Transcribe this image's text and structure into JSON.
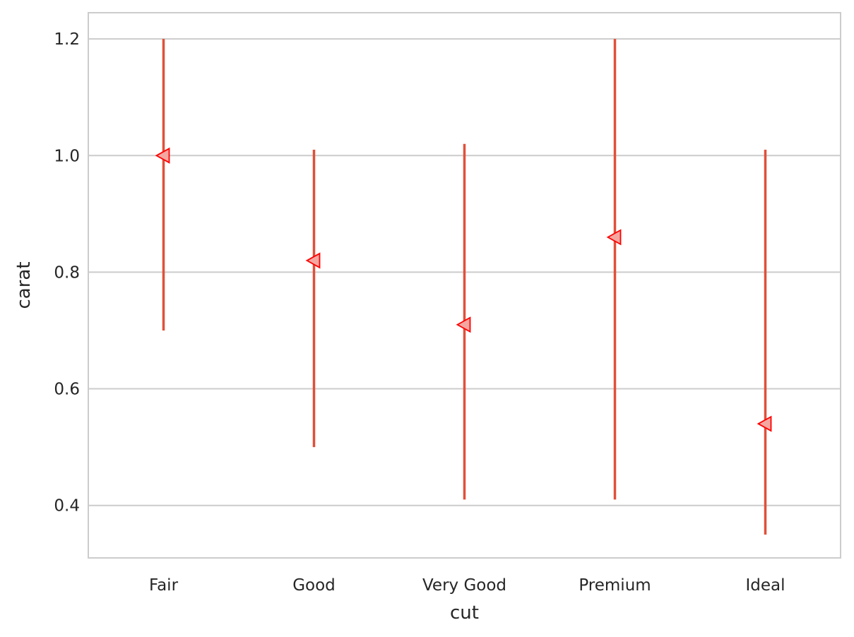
{
  "chart_data": {
    "type": "scatter",
    "xlabel": "cut",
    "ylabel": "carat",
    "categories": [
      "Fair",
      "Good",
      "Very Good",
      "Premium",
      "Ideal"
    ],
    "series": [
      {
        "estimates": [
          1.0,
          0.82,
          0.71,
          0.86,
          0.54
        ],
        "error_low": [
          0.7,
          0.5,
          0.41,
          0.41,
          0.35
        ],
        "error_high": [
          1.2,
          1.01,
          1.02,
          1.2,
          1.01
        ]
      }
    ],
    "ylim": [
      0.31,
      1.245
    ],
    "yticks": [
      0.4,
      0.6,
      0.8,
      1.0,
      1.2
    ],
    "ytick_labels": [
      "0.4",
      "0.6",
      "0.8",
      "1.0",
      "1.2"
    ],
    "grid": true,
    "marker": "triangle-left",
    "colors": {
      "errorbar": "#e0503a",
      "marker_fill": "#f4a6a0",
      "marker_edge": "#ff0000",
      "grid": "#cccccc",
      "frame": "#cccccc",
      "text": "#262626"
    }
  }
}
